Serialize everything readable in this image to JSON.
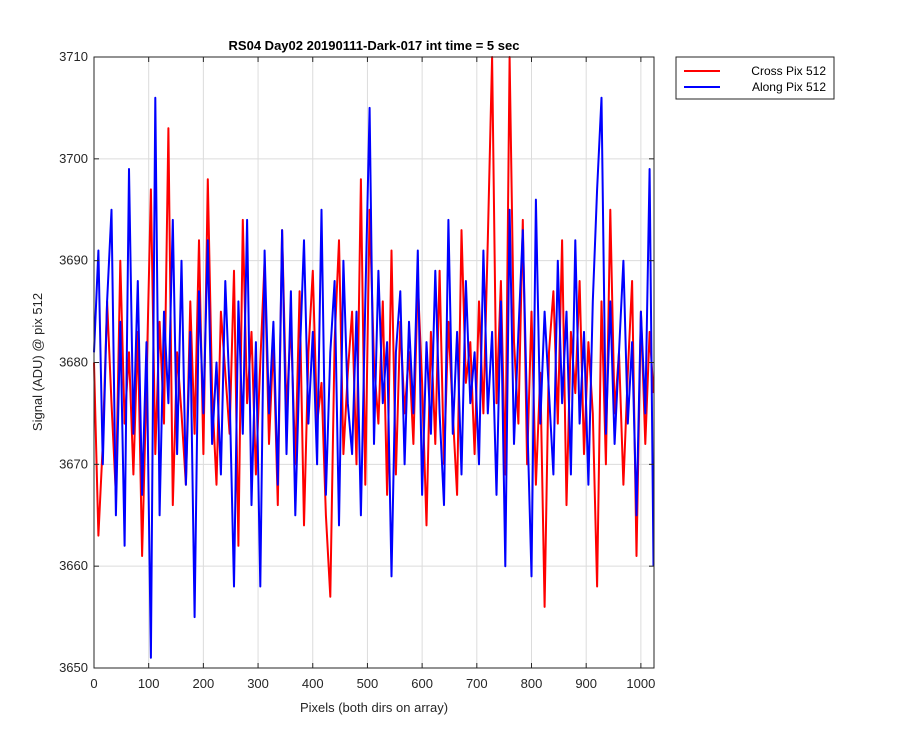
{
  "chart_data": {
    "type": "line",
    "title": "RS04 Day02 20190111-Dark-017 int time = 5 sec",
    "xlabel": "Pixels (both dirs on array)",
    "ylabel": "Signal (ADU) @ pix 512",
    "xlim": [
      0,
      1024
    ],
    "ylim": [
      3650,
      3710
    ],
    "xticks": [
      0,
      100,
      200,
      300,
      400,
      500,
      600,
      700,
      800,
      900,
      1000
    ],
    "yticks": [
      3650,
      3660,
      3670,
      3680,
      3690,
      3700,
      3710
    ],
    "grid": true,
    "legend_position": "outside-top-right",
    "series": [
      {
        "name": "Cross Pix 512",
        "color": "#ff0000",
        "x": [
          0,
          8,
          16,
          24,
          32,
          40,
          48,
          56,
          64,
          72,
          80,
          88,
          96,
          104,
          112,
          120,
          128,
          136,
          144,
          152,
          160,
          168,
          176,
          184,
          192,
          200,
          208,
          216,
          224,
          232,
          240,
          248,
          256,
          264,
          272,
          280,
          288,
          296,
          304,
          312,
          320,
          328,
          336,
          344,
          352,
          360,
          368,
          376,
          384,
          392,
          400,
          408,
          416,
          424,
          432,
          440,
          448,
          456,
          464,
          472,
          480,
          488,
          496,
          504,
          512,
          520,
          528,
          536,
          544,
          552,
          560,
          568,
          576,
          584,
          592,
          600,
          608,
          616,
          624,
          632,
          640,
          648,
          656,
          664,
          672,
          680,
          688,
          696,
          704,
          712,
          720,
          728,
          736,
          744,
          752,
          760,
          768,
          776,
          784,
          792,
          800,
          808,
          816,
          824,
          832,
          840,
          848,
          856,
          864,
          872,
          880,
          888,
          896,
          904,
          912,
          920,
          928,
          936,
          944,
          952,
          960,
          968,
          976,
          984,
          992,
          1000,
          1008,
          1016,
          1023
        ],
        "y": [
          3680,
          3663,
          3672,
          3686,
          3676,
          3667,
          3690,
          3674,
          3681,
          3669,
          3683,
          3661,
          3678,
          3697,
          3671,
          3684,
          3674,
          3703,
          3666,
          3681,
          3675,
          3668,
          3686,
          3673,
          3692,
          3671,
          3698,
          3677,
          3668,
          3685,
          3679,
          3673,
          3689,
          3662,
          3694,
          3676,
          3683,
          3669,
          3680,
          3690,
          3672,
          3682,
          3666,
          3693,
          3675,
          3684,
          3670,
          3687,
          3664,
          3681,
          3689,
          3674,
          3678,
          3665,
          3657,
          3682,
          3692,
          3671,
          3679,
          3685,
          3670,
          3698,
          3668,
          3695,
          3680,
          3674,
          3686,
          3667,
          3691,
          3669,
          3684,
          3675,
          3681,
          3672,
          3688,
          3678,
          3664,
          3683,
          3672,
          3689,
          3670,
          3684,
          3675,
          3667,
          3693,
          3678,
          3682,
          3671,
          3686,
          3675,
          3692,
          3710,
          3676,
          3688,
          3669,
          3710,
          3682,
          3674,
          3694,
          3670,
          3685,
          3668,
          3679,
          3656,
          3681,
          3687,
          3674,
          3692,
          3666,
          3683,
          3677,
          3688,
          3671,
          3682,
          3675,
          3658,
          3686,
          3670,
          3695,
          3675,
          3681,
          3668,
          3679,
          3688,
          3661,
          3685,
          3672,
          3683,
          3677
        ]
      },
      {
        "name": "Along Pix 512",
        "color": "#0000ff",
        "x": [
          0,
          8,
          16,
          24,
          32,
          40,
          48,
          56,
          64,
          72,
          80,
          88,
          96,
          104,
          112,
          120,
          128,
          136,
          144,
          152,
          160,
          168,
          176,
          184,
          192,
          200,
          208,
          216,
          224,
          232,
          240,
          248,
          256,
          264,
          272,
          280,
          288,
          296,
          304,
          312,
          320,
          328,
          336,
          344,
          352,
          360,
          368,
          376,
          384,
          392,
          400,
          408,
          416,
          424,
          432,
          440,
          448,
          456,
          464,
          472,
          480,
          488,
          496,
          504,
          512,
          520,
          528,
          536,
          544,
          552,
          560,
          568,
          576,
          584,
          592,
          600,
          608,
          616,
          624,
          632,
          640,
          648,
          656,
          664,
          672,
          680,
          688,
          696,
          704,
          712,
          720,
          728,
          736,
          744,
          752,
          760,
          768,
          776,
          784,
          792,
          800,
          808,
          816,
          824,
          832,
          840,
          848,
          856,
          864,
          872,
          880,
          888,
          896,
          904,
          912,
          920,
          928,
          936,
          944,
          952,
          960,
          968,
          976,
          984,
          992,
          1000,
          1008,
          1016,
          1023
        ],
        "y": [
          3681,
          3691,
          3670,
          3686,
          3695,
          3665,
          3684,
          3662,
          3699,
          3673,
          3688,
          3667,
          3682,
          3651,
          3706,
          3665,
          3685,
          3676,
          3694,
          3671,
          3690,
          3668,
          3683,
          3655,
          3687,
          3675,
          3692,
          3672,
          3680,
          3669,
          3688,
          3677,
          3658,
          3686,
          3673,
          3694,
          3666,
          3682,
          3658,
          3691,
          3675,
          3684,
          3668,
          3693,
          3671,
          3687,
          3665,
          3680,
          3692,
          3674,
          3683,
          3670,
          3695,
          3667,
          3681,
          3688,
          3664,
          3690,
          3676,
          3671,
          3685,
          3665,
          3686,
          3705,
          3672,
          3689,
          3676,
          3682,
          3659,
          3681,
          3687,
          3670,
          3684,
          3675,
          3691,
          3667,
          3682,
          3673,
          3689,
          3675,
          3666,
          3694,
          3673,
          3683,
          3669,
          3688,
          3676,
          3681,
          3670,
          3691,
          3675,
          3683,
          3667,
          3686,
          3660,
          3695,
          3672,
          3683,
          3693,
          3675,
          3659,
          3696,
          3674,
          3685,
          3677,
          3669,
          3690,
          3676,
          3685,
          3669,
          3692,
          3674,
          3683,
          3668,
          3686,
          3697,
          3706,
          3673,
          3686,
          3672,
          3681,
          3690,
          3674,
          3682,
          3665,
          3685,
          3675,
          3699,
          3660
        ]
      }
    ]
  }
}
